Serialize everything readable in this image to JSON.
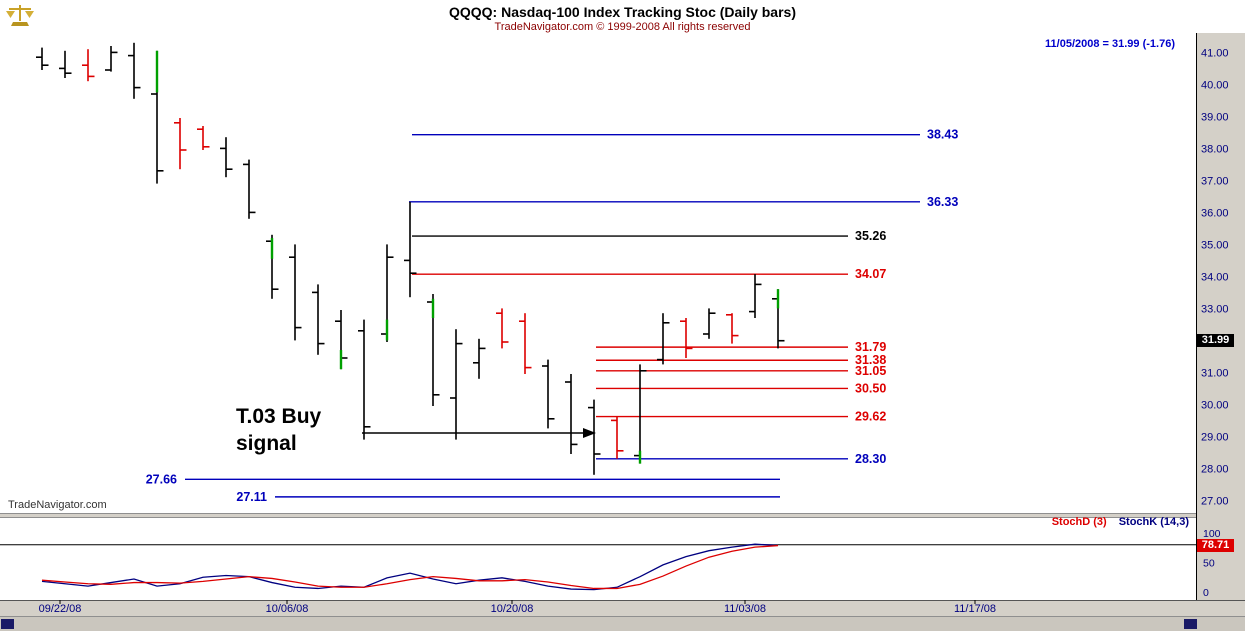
{
  "header": {
    "title": "QQQQ:  Nasdaq-100 Index Tracking Stoc  (Daily bars)",
    "copyright": "TradeNavigator.com © 1999-2008 All rights reserved",
    "quote": "11/05/2008 = 31.99 (-1.76)"
  },
  "watermark": {
    "label": "TradeNavigator.com"
  },
  "colors": {
    "bar_black": "#000000",
    "bar_red": "#dd0000",
    "bar_green": "#00a000",
    "accent_blue": "#0000bb",
    "accent_red": "#dd0000",
    "level_black": "#000000",
    "axis_text": "#000080",
    "badge_price_bg": "#000000",
    "badge_stoch_bg": "#dd0000",
    "strip_bg": "#d4d0c8",
    "stoch_d": "#dd0000",
    "stoch_k": "#000080"
  },
  "chart_data": {
    "type": "ohlc-bar",
    "symbol": "QQQQ",
    "title": "QQQQ: Nasdaq-100 Index Tracking Stoc (Daily bars)",
    "last_quote": {
      "date": "11/05/2008",
      "close": 31.99,
      "change": -1.76
    },
    "y_axis": {
      "side": "right",
      "min": 27.0,
      "max": 41.0,
      "ticks": [
        "41.00",
        "40.00",
        "39.00",
        "38.00",
        "37.00",
        "36.00",
        "35.00",
        "34.00",
        "33.00",
        "31.00",
        "30.00",
        "29.00",
        "28.00",
        "27.00"
      ],
      "last_price_badge": "31.99"
    },
    "x_axis": {
      "tick_labels": [
        {
          "label": "09/22/08",
          "x": 60
        },
        {
          "label": "10/06/08",
          "x": 287
        },
        {
          "label": "10/20/08",
          "x": 512
        },
        {
          "label": "11/03/08",
          "x": 745
        },
        {
          "label": "11/17/08",
          "x": 975
        }
      ]
    },
    "bars": [
      {
        "o": 40.85,
        "h": 41.15,
        "l": 40.45,
        "c": 40.6,
        "col": "k"
      },
      {
        "o": 40.5,
        "h": 41.05,
        "l": 40.2,
        "c": 40.35,
        "col": "k"
      },
      {
        "o": 40.6,
        "h": 41.1,
        "l": 40.1,
        "c": 40.25,
        "col": "r"
      },
      {
        "o": 40.45,
        "h": 41.2,
        "l": 40.4,
        "c": 41.0,
        "col": "k"
      },
      {
        "o": 40.9,
        "h": 41.3,
        "l": 39.55,
        "c": 39.9,
        "col": "k"
      },
      {
        "o": 39.7,
        "h": 41.05,
        "l": 36.9,
        "c": 37.3,
        "col": "k",
        "acc": [
          39.75,
          41.05
        ]
      },
      {
        "o": 38.8,
        "h": 38.95,
        "l": 37.35,
        "c": 37.95,
        "col": "r"
      },
      {
        "o": 38.6,
        "h": 38.7,
        "l": 37.95,
        "c": 38.05,
        "col": "r"
      },
      {
        "o": 38.0,
        "h": 38.35,
        "l": 37.1,
        "c": 37.35,
        "col": "k"
      },
      {
        "o": 37.5,
        "h": 37.65,
        "l": 35.8,
        "c": 36.0,
        "col": "k"
      },
      {
        "o": 35.1,
        "h": 35.3,
        "l": 33.3,
        "c": 33.6,
        "col": "k",
        "acc": [
          34.55,
          35.2
        ]
      },
      {
        "o": 34.6,
        "h": 35.0,
        "l": 32.0,
        "c": 32.4,
        "col": "k"
      },
      {
        "o": 33.5,
        "h": 33.75,
        "l": 31.55,
        "c": 31.9,
        "col": "k"
      },
      {
        "o": 32.6,
        "h": 32.95,
        "l": 31.1,
        "c": 31.45,
        "col": "k",
        "acc": [
          31.1,
          31.7
        ]
      },
      {
        "o": 32.3,
        "h": 32.65,
        "l": 28.9,
        "c": 29.3,
        "col": "k"
      },
      {
        "o": 32.2,
        "h": 35.0,
        "l": 31.95,
        "c": 34.6,
        "col": "k",
        "acc": [
          32.0,
          32.65
        ]
      },
      {
        "o": 34.5,
        "h": 36.33,
        "l": 33.35,
        "c": 34.1,
        "col": "k"
      },
      {
        "o": 33.2,
        "h": 33.45,
        "l": 29.95,
        "c": 30.3,
        "col": "k",
        "acc": [
          32.7,
          33.3
        ]
      },
      {
        "o": 30.2,
        "h": 32.35,
        "l": 28.9,
        "c": 31.9,
        "col": "k"
      },
      {
        "o": 31.3,
        "h": 32.05,
        "l": 30.8,
        "c": 31.75,
        "col": "k"
      },
      {
        "o": 32.85,
        "h": 33.0,
        "l": 31.75,
        "c": 31.95,
        "col": "r"
      },
      {
        "o": 32.6,
        "h": 32.85,
        "l": 30.95,
        "c": 31.15,
        "col": "r"
      },
      {
        "o": 31.2,
        "h": 31.4,
        "l": 29.25,
        "c": 29.55,
        "col": "k"
      },
      {
        "o": 30.7,
        "h": 30.95,
        "l": 28.45,
        "c": 28.75,
        "col": "k"
      },
      {
        "o": 29.9,
        "h": 30.15,
        "l": 27.8,
        "c": 28.45,
        "col": "k"
      },
      {
        "o": 29.5,
        "h": 29.62,
        "l": 28.3,
        "c": 28.55,
        "col": "r"
      },
      {
        "o": 28.4,
        "h": 31.25,
        "l": 28.15,
        "c": 31.05,
        "col": "k",
        "acc": [
          28.15,
          28.55
        ]
      },
      {
        "o": 31.4,
        "h": 32.85,
        "l": 31.25,
        "c": 32.55,
        "col": "k"
      },
      {
        "o": 32.6,
        "h": 32.7,
        "l": 31.45,
        "c": 31.75,
        "col": "r"
      },
      {
        "o": 32.2,
        "h": 33.0,
        "l": 32.05,
        "c": 32.85,
        "col": "k"
      },
      {
        "o": 32.8,
        "h": 32.85,
        "l": 31.9,
        "c": 32.15,
        "col": "r"
      },
      {
        "o": 32.9,
        "h": 34.07,
        "l": 32.7,
        "c": 33.75,
        "col": "k"
      },
      {
        "o": 33.3,
        "h": 33.6,
        "l": 31.75,
        "c": 31.99,
        "col": "k",
        "acc": [
          33.0,
          33.6
        ]
      }
    ],
    "levels": [
      {
        "price": 38.43,
        "color": "blue",
        "x1": 412,
        "x2": 920,
        "side": "right"
      },
      {
        "price": 36.33,
        "color": "blue",
        "x1": 409,
        "x2": 920,
        "side": "right"
      },
      {
        "price": 35.26,
        "color": "black",
        "x1": 412,
        "x2": 848,
        "side": "right"
      },
      {
        "price": 34.07,
        "color": "red",
        "x1": 412,
        "x2": 848,
        "side": "right"
      },
      {
        "price": 31.79,
        "color": "red",
        "x1": 596,
        "x2": 848,
        "side": "right"
      },
      {
        "price": 31.38,
        "color": "red",
        "x1": 596,
        "x2": 848,
        "side": "right"
      },
      {
        "price": 31.05,
        "color": "red",
        "x1": 596,
        "x2": 848,
        "side": "right"
      },
      {
        "price": 30.5,
        "color": "red",
        "x1": 596,
        "x2": 848,
        "side": "right"
      },
      {
        "price": 29.62,
        "color": "red",
        "x1": 596,
        "x2": 848,
        "side": "right"
      },
      {
        "price": 28.3,
        "color": "blue",
        "x1": 596,
        "x2": 848,
        "side": "right"
      },
      {
        "price": 27.66,
        "color": "blue",
        "x1": 185,
        "x2": 780,
        "side": "left"
      },
      {
        "price": 27.11,
        "color": "blue",
        "x1": 275,
        "x2": 780,
        "side": "left"
      }
    ],
    "annotation": {
      "line1": "T.03 Buy",
      "line2": "signal",
      "text": "T.03 Buy signal"
    },
    "indicator": {
      "name": "Stochastic",
      "legend": [
        {
          "label": "StochD (3)",
          "color": "#dd0000"
        },
        {
          "label": "StochK (14,3)",
          "color": "#000080"
        }
      ],
      "y_ticks": [
        "100",
        "50",
        "0"
      ],
      "threshold_line": 80,
      "badge": "78.71",
      "d": [
        20,
        17,
        14,
        13,
        16,
        16,
        15,
        18,
        22,
        26,
        23,
        17,
        10,
        8,
        8,
        14,
        21,
        26,
        23,
        19,
        19,
        21,
        17,
        11,
        6,
        6,
        13,
        27,
        44,
        59,
        69,
        76,
        78.7
      ],
      "k": [
        18,
        14,
        10,
        16,
        22,
        10,
        14,
        25,
        28,
        26,
        16,
        8,
        6,
        10,
        8,
        24,
        32,
        22,
        14,
        20,
        24,
        18,
        10,
        5,
        4,
        8,
        26,
        46,
        60,
        70,
        76,
        81,
        79
      ]
    }
  }
}
